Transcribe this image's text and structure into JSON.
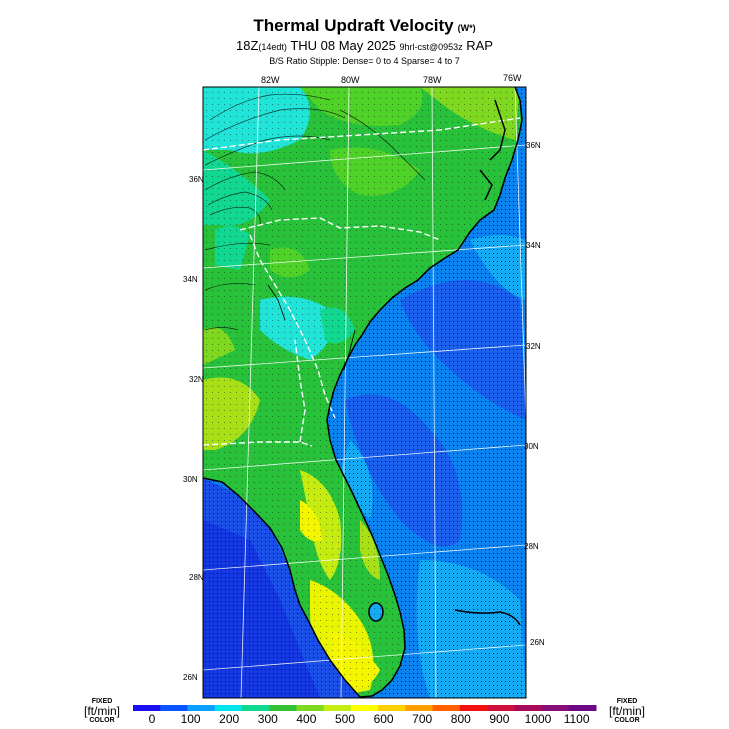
{
  "header": {
    "title": "Thermal Updraft Velocity",
    "title_units": "(W*)",
    "time_main": "18Z",
    "time_local": "(14edt)",
    "date": "THU 08 May 2025",
    "run_info": "9hrl-cst@0953z",
    "model": "RAP",
    "stipple_note": "B/S Ratio Stipple:  Dense= 0 to 4  Sparse= 4 to 7"
  },
  "map": {
    "region": "Southeastern United States",
    "longitude_labels": [
      "82W",
      "80W",
      "78W",
      "76W"
    ],
    "latitude_labels_left": [
      "36N",
      "34N",
      "32N",
      "30N",
      "28N",
      "26N"
    ],
    "latitude_labels_right": [
      "36N",
      "34N",
      "32N",
      "30N",
      "28N",
      "26N"
    ]
  },
  "legend": {
    "left": {
      "fixed": "FIXED",
      "unit": "[ft/min]",
      "color": "COLOR"
    },
    "right": {
      "fixed": "FIXED",
      "unit": "[ft/min]",
      "color": "COLOR"
    },
    "ticks": [
      "0",
      "100",
      "200",
      "300",
      "400",
      "500",
      "600",
      "700",
      "800",
      "900",
      "1000",
      "1100"
    ],
    "colors": [
      "#1a0ff0",
      "#0a55ff",
      "#0aa0ff",
      "#00e4ee",
      "#10d890",
      "#32c232",
      "#7ed820",
      "#c4ec10",
      "#ffff00",
      "#ffd000",
      "#ffa000",
      "#ff6000",
      "#f01010",
      "#d0103c",
      "#a80a5a",
      "#860e76",
      "#6c0a86"
    ]
  },
  "colors": {
    "ocean_deep": "#1a4fe8",
    "ocean": "#0a82f0",
    "ocean_light": "#14aaf4",
    "land_cyan": "#20e4d8",
    "land_green": "#28c23a",
    "land_mid": "#4ed228",
    "land_yellowgreen": "#a8e018",
    "land_yellow": "#f4f600"
  }
}
